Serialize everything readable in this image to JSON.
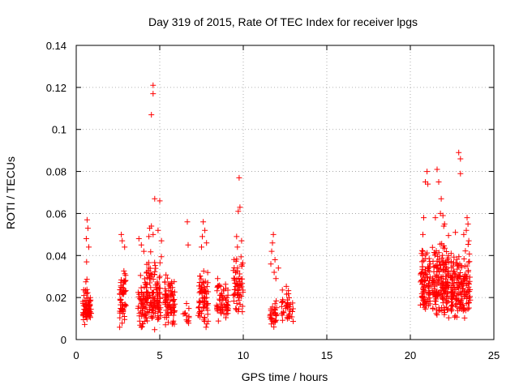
{
  "chart_data": {
    "type": "scatter",
    "title": "Day 319 of 2015, Rate Of TEC Index for receiver lpgs",
    "xlabel": "GPS time / hours",
    "ylabel": "ROTI / TECUs",
    "xlim": [
      0,
      25
    ],
    "ylim": [
      0,
      0.14
    ],
    "xticks": [
      0,
      5,
      10,
      15,
      20,
      25
    ],
    "xtick_labels": [
      "0",
      "5",
      "10",
      "15",
      "20",
      "25"
    ],
    "yticks": [
      0,
      0.02,
      0.04,
      0.06,
      0.08,
      0.1,
      0.12,
      0.14
    ],
    "ytick_labels": [
      "0",
      "0.02",
      "0.04",
      "0.06",
      "0.08",
      "0.1",
      "0.12",
      "0.14"
    ],
    "grid": true,
    "marker": "+",
    "marker_color": "#ff0000",
    "clusters": [
      {
        "x_start": 0.4,
        "x_end": 0.9,
        "y_min": 0.004,
        "y_max": 0.03,
        "count": 70
      },
      {
        "x_start": 2.6,
        "x_end": 3.0,
        "y_min": 0.005,
        "y_max": 0.04,
        "count": 55
      },
      {
        "x_start": 3.7,
        "x_end": 4.2,
        "y_min": 0.004,
        "y_max": 0.035,
        "count": 55
      },
      {
        "x_start": 4.2,
        "x_end": 5.1,
        "y_min": 0.003,
        "y_max": 0.045,
        "count": 120
      },
      {
        "x_start": 5.3,
        "x_end": 5.9,
        "y_min": 0.004,
        "y_max": 0.037,
        "count": 80
      },
      {
        "x_start": 6.4,
        "x_end": 6.8,
        "y_min": 0.006,
        "y_max": 0.02,
        "count": 12
      },
      {
        "x_start": 7.3,
        "x_end": 7.9,
        "y_min": 0.004,
        "y_max": 0.04,
        "count": 70
      },
      {
        "x_start": 8.4,
        "x_end": 9.1,
        "y_min": 0.005,
        "y_max": 0.034,
        "count": 60
      },
      {
        "x_start": 9.4,
        "x_end": 10.0,
        "y_min": 0.006,
        "y_max": 0.045,
        "count": 60
      },
      {
        "x_start": 11.6,
        "x_end": 12.0,
        "y_min": 0.004,
        "y_max": 0.02,
        "count": 30
      },
      {
        "x_start": 12.3,
        "x_end": 13.0,
        "y_min": 0.005,
        "y_max": 0.03,
        "count": 40
      },
      {
        "x_start": 20.6,
        "x_end": 21.2,
        "y_min": 0.01,
        "y_max": 0.05,
        "count": 90
      },
      {
        "x_start": 21.3,
        "x_end": 22.3,
        "y_min": 0.008,
        "y_max": 0.055,
        "count": 170
      },
      {
        "x_start": 22.4,
        "x_end": 23.6,
        "y_min": 0.006,
        "y_max": 0.05,
        "count": 170
      }
    ],
    "outliers": [
      {
        "x": 0.65,
        "y": 0.057
      },
      {
        "x": 0.7,
        "y": 0.053
      },
      {
        "x": 0.6,
        "y": 0.048
      },
      {
        "x": 0.75,
        "y": 0.044
      },
      {
        "x": 0.62,
        "y": 0.037
      },
      {
        "x": 2.7,
        "y": 0.05
      },
      {
        "x": 2.75,
        "y": 0.047
      },
      {
        "x": 2.9,
        "y": 0.044
      },
      {
        "x": 3.75,
        "y": 0.048
      },
      {
        "x": 3.9,
        "y": 0.045
      },
      {
        "x": 4.05,
        "y": 0.042
      },
      {
        "x": 4.6,
        "y": 0.121
      },
      {
        "x": 4.6,
        "y": 0.117
      },
      {
        "x": 4.5,
        "y": 0.107
      },
      {
        "x": 4.7,
        "y": 0.067
      },
      {
        "x": 5.0,
        "y": 0.066
      },
      {
        "x": 4.5,
        "y": 0.054
      },
      {
        "x": 4.4,
        "y": 0.053
      },
      {
        "x": 4.6,
        "y": 0.05
      },
      {
        "x": 4.9,
        "y": 0.052
      },
      {
        "x": 5.1,
        "y": 0.047
      },
      {
        "x": 4.35,
        "y": 0.049
      },
      {
        "x": 6.65,
        "y": 0.056
      },
      {
        "x": 6.7,
        "y": 0.045
      },
      {
        "x": 7.6,
        "y": 0.056
      },
      {
        "x": 7.7,
        "y": 0.052
      },
      {
        "x": 7.55,
        "y": 0.049
      },
      {
        "x": 7.8,
        "y": 0.046
      },
      {
        "x": 7.5,
        "y": 0.044
      },
      {
        "x": 9.75,
        "y": 0.077
      },
      {
        "x": 9.8,
        "y": 0.063
      },
      {
        "x": 9.7,
        "y": 0.061
      },
      {
        "x": 9.6,
        "y": 0.049
      },
      {
        "x": 9.9,
        "y": 0.047
      },
      {
        "x": 9.65,
        "y": 0.044
      },
      {
        "x": 11.8,
        "y": 0.05
      },
      {
        "x": 11.75,
        "y": 0.046
      },
      {
        "x": 11.7,
        "y": 0.042
      },
      {
        "x": 11.9,
        "y": 0.038
      },
      {
        "x": 11.65,
        "y": 0.036
      },
      {
        "x": 11.85,
        "y": 0.032
      },
      {
        "x": 12.1,
        "y": 0.034
      },
      {
        "x": 11.95,
        "y": 0.029
      },
      {
        "x": 20.9,
        "y": 0.075
      },
      {
        "x": 21.0,
        "y": 0.08
      },
      {
        "x": 21.05,
        "y": 0.074
      },
      {
        "x": 20.8,
        "y": 0.058
      },
      {
        "x": 20.75,
        "y": 0.05
      },
      {
        "x": 21.6,
        "y": 0.081
      },
      {
        "x": 21.7,
        "y": 0.075
      },
      {
        "x": 21.85,
        "y": 0.067
      },
      {
        "x": 21.5,
        "y": 0.058
      },
      {
        "x": 21.8,
        "y": 0.06
      },
      {
        "x": 22.05,
        "y": 0.055
      },
      {
        "x": 21.95,
        "y": 0.059
      },
      {
        "x": 22.0,
        "y": 0.054
      },
      {
        "x": 22.9,
        "y": 0.089
      },
      {
        "x": 23.0,
        "y": 0.086
      },
      {
        "x": 23.0,
        "y": 0.079
      },
      {
        "x": 23.4,
        "y": 0.058
      },
      {
        "x": 23.45,
        "y": 0.055
      },
      {
        "x": 23.35,
        "y": 0.052
      },
      {
        "x": 22.7,
        "y": 0.051
      },
      {
        "x": 23.2,
        "y": 0.05
      },
      {
        "x": 23.5,
        "y": 0.047
      }
    ]
  }
}
